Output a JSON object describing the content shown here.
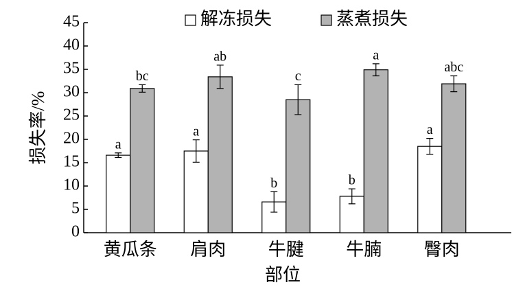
{
  "chart_data": {
    "type": "bar",
    "x_label": "部位",
    "y_label": "损失率/%",
    "categories": [
      "黄瓜条",
      "肩肉",
      "牛腱",
      "牛腩",
      "臀肉"
    ],
    "series": [
      {
        "name": "解冻损失",
        "color": "#ffffff",
        "values": [
          16.6,
          17.5,
          6.6,
          7.8,
          18.5
        ],
        "errors": [
          0.5,
          2.4,
          2.2,
          1.6,
          1.7
        ],
        "letters": [
          "a",
          "a",
          "b",
          "b",
          "a"
        ]
      },
      {
        "name": "蒸煮损失",
        "color": "#b3b3b3",
        "values": [
          30.9,
          33.4,
          28.5,
          34.9,
          31.9
        ],
        "errors": [
          0.8,
          2.5,
          3.2,
          1.3,
          1.7
        ],
        "letters": [
          "bc",
          "ab",
          "c",
          "a",
          "abc"
        ]
      }
    ],
    "ylim": [
      0,
      45
    ],
    "yticks": [
      0,
      5,
      10,
      15,
      20,
      25,
      30,
      35,
      40,
      45
    ],
    "grid": false
  }
}
